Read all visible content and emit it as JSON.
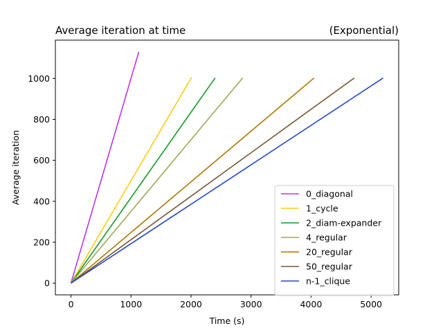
{
  "chart_data": {
    "type": "line",
    "title": "Average iteration at time",
    "title_right": "(Exponential)",
    "xlabel": "Time (s)",
    "ylabel": "Average iteration",
    "xlim": [
      -260,
      5460
    ],
    "ylim": [
      -57,
      1187
    ],
    "xticks": [
      0,
      1000,
      2000,
      3000,
      4000,
      5000
    ],
    "yticks": [
      0,
      200,
      400,
      600,
      800,
      1000
    ],
    "grid": false,
    "legend_position": "lower-right",
    "series": [
      {
        "name": "0_diagonal",
        "color": "#bb33ee",
        "x": [
          0,
          1130
        ],
        "y": [
          0,
          1130
        ]
      },
      {
        "name": "1_cycle",
        "color": "#ffcc11",
        "x": [
          0,
          2010
        ],
        "y": [
          0,
          1005
        ]
      },
      {
        "name": "2_diam-expander",
        "color": "#119922",
        "x": [
          0,
          2400
        ],
        "y": [
          0,
          1002
        ]
      },
      {
        "name": "4_regular",
        "color": "#99aa55",
        "x": [
          0,
          2860
        ],
        "y": [
          0,
          1002
        ]
      },
      {
        "name": "20_regular",
        "color": "#aa7700",
        "x": [
          0,
          4050
        ],
        "y": [
          0,
          1002
        ]
      },
      {
        "name": "50_regular",
        "color": "#775533",
        "x": [
          0,
          4720
        ],
        "y": [
          0,
          1002
        ]
      },
      {
        "name": "n-1_clique",
        "color": "#2244cc",
        "x": [
          0,
          5200
        ],
        "y": [
          0,
          1002
        ]
      }
    ]
  }
}
